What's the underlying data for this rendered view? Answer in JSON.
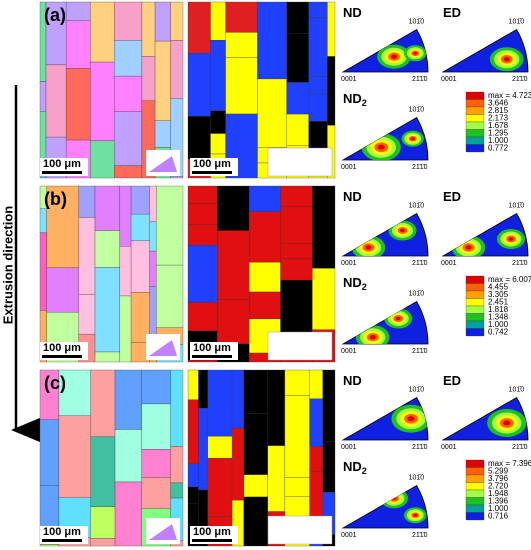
{
  "axis_label": "Extrusion direction",
  "pole_labels": {
    "top": "101̄0",
    "left": "0001",
    "right": "21̄1̄0"
  },
  "panels": [
    {
      "label": "(a)",
      "scale_bar_left": "100 μm",
      "scale_bar_right": "100 μm",
      "pole_figures": [
        {
          "title": "ND"
        },
        {
          "title": "ED"
        },
        {
          "title": "ND",
          "subscript": "2"
        }
      ],
      "legend": [
        "max = 4.723",
        "3.646",
        "2.815",
        "2.173",
        "1.678",
        "1.295",
        "1.000",
        "0.772"
      ]
    },
    {
      "label": "(b)",
      "scale_bar_left": "100 μm",
      "scale_bar_right": "100 μm",
      "pole_figures": [
        {
          "title": "ND"
        },
        {
          "title": "ED"
        },
        {
          "title": "ND",
          "subscript": "2"
        }
      ],
      "legend": [
        "max = 6.007",
        "4.455",
        "3.305",
        "2.451",
        "1.818",
        "1.348",
        "1.000",
        "0.742"
      ]
    },
    {
      "label": "(c)",
      "scale_bar_left": "100 μm",
      "scale_bar_right": "100 μm",
      "pole_figures": [
        {
          "title": "ND"
        },
        {
          "title": "ED"
        },
        {
          "title": "ND",
          "subscript": "2"
        }
      ],
      "legend": [
        "max = 7.396",
        "5.299",
        "3.796",
        "2.720",
        "1.948",
        "1.396",
        "1.000",
        "0.716"
      ]
    }
  ]
}
